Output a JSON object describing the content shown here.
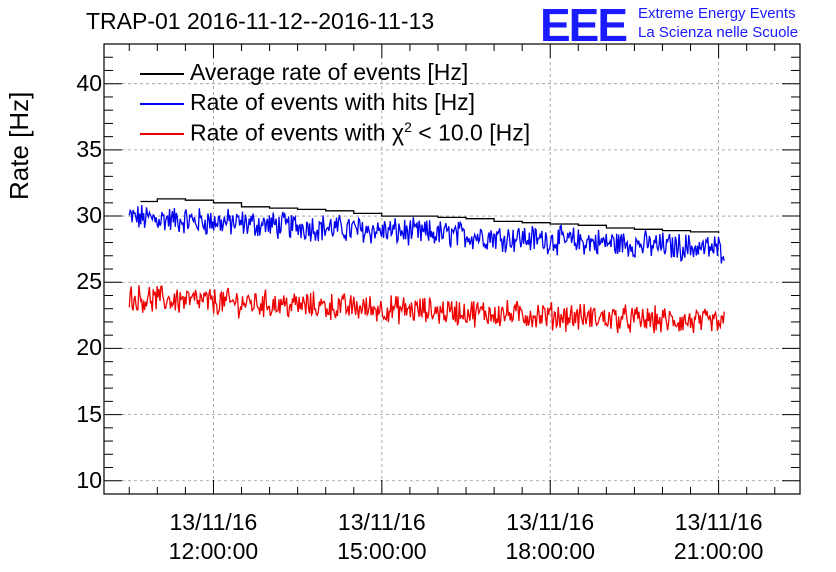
{
  "chart_data": {
    "type": "line",
    "title": "TRAP-01 2016-11-12--2016-11-13",
    "ylabel": "Rate [Hz]",
    "xlabel": "",
    "ylim": [
      9,
      43
    ],
    "xlim_hours": [
      10.05,
      22.45
    ],
    "yticks": [
      10,
      15,
      20,
      25,
      30,
      35,
      40
    ],
    "xticks": [
      {
        "hour": 12,
        "date": "13/11/16",
        "time": "12:00:00"
      },
      {
        "hour": 15,
        "date": "13/11/16",
        "time": "15:00:00"
      },
      {
        "hour": 18,
        "date": "13/11/16",
        "time": "18:00:00"
      },
      {
        "hour": 21,
        "date": "13/11/16",
        "time": "21:00:00"
      }
    ],
    "grid": true,
    "legend_position": "top-left",
    "series": [
      {
        "name": "Average rate of events [Hz]",
        "color": "#000000",
        "x": [
          10.7,
          11.0,
          11.5,
          12.0,
          12.5,
          13.0,
          13.5,
          14.0,
          14.5,
          15.0,
          15.5,
          16.0,
          16.5,
          17.0,
          17.5,
          18.0,
          18.5,
          19.0,
          19.5,
          20.0,
          20.5,
          21.0
        ],
        "values": [
          31.1,
          31.3,
          31.2,
          31.0,
          30.7,
          30.6,
          30.5,
          30.4,
          30.2,
          30.0,
          30.0,
          29.9,
          29.8,
          29.6,
          29.5,
          29.4,
          29.3,
          29.1,
          29.0,
          28.9,
          28.8,
          28.7
        ]
      },
      {
        "name": "Rate of events with hits [Hz]",
        "color": "#0000ee",
        "x": [
          10.5,
          21.1
        ],
        "values": [
          29.9,
          27.5
        ],
        "noise_amplitude": 0.9
      },
      {
        "name": "Rate of events with χ² < 10.0 [Hz]",
        "color": "#ee0000",
        "x": [
          10.5,
          21.1
        ],
        "values": [
          23.8,
          21.9
        ],
        "noise_amplitude": 0.9
      }
    ]
  },
  "legend": [
    {
      "label_pre": "Rate of events with ",
      "label_chi": "χ",
      "label_sup": "2",
      "label_post": " < 10.0 [Hz]"
    }
  ],
  "logo": {
    "mark": "EEE",
    "line1": "Extreme Energy Events",
    "line2": "La Scienza nelle Scuole"
  }
}
